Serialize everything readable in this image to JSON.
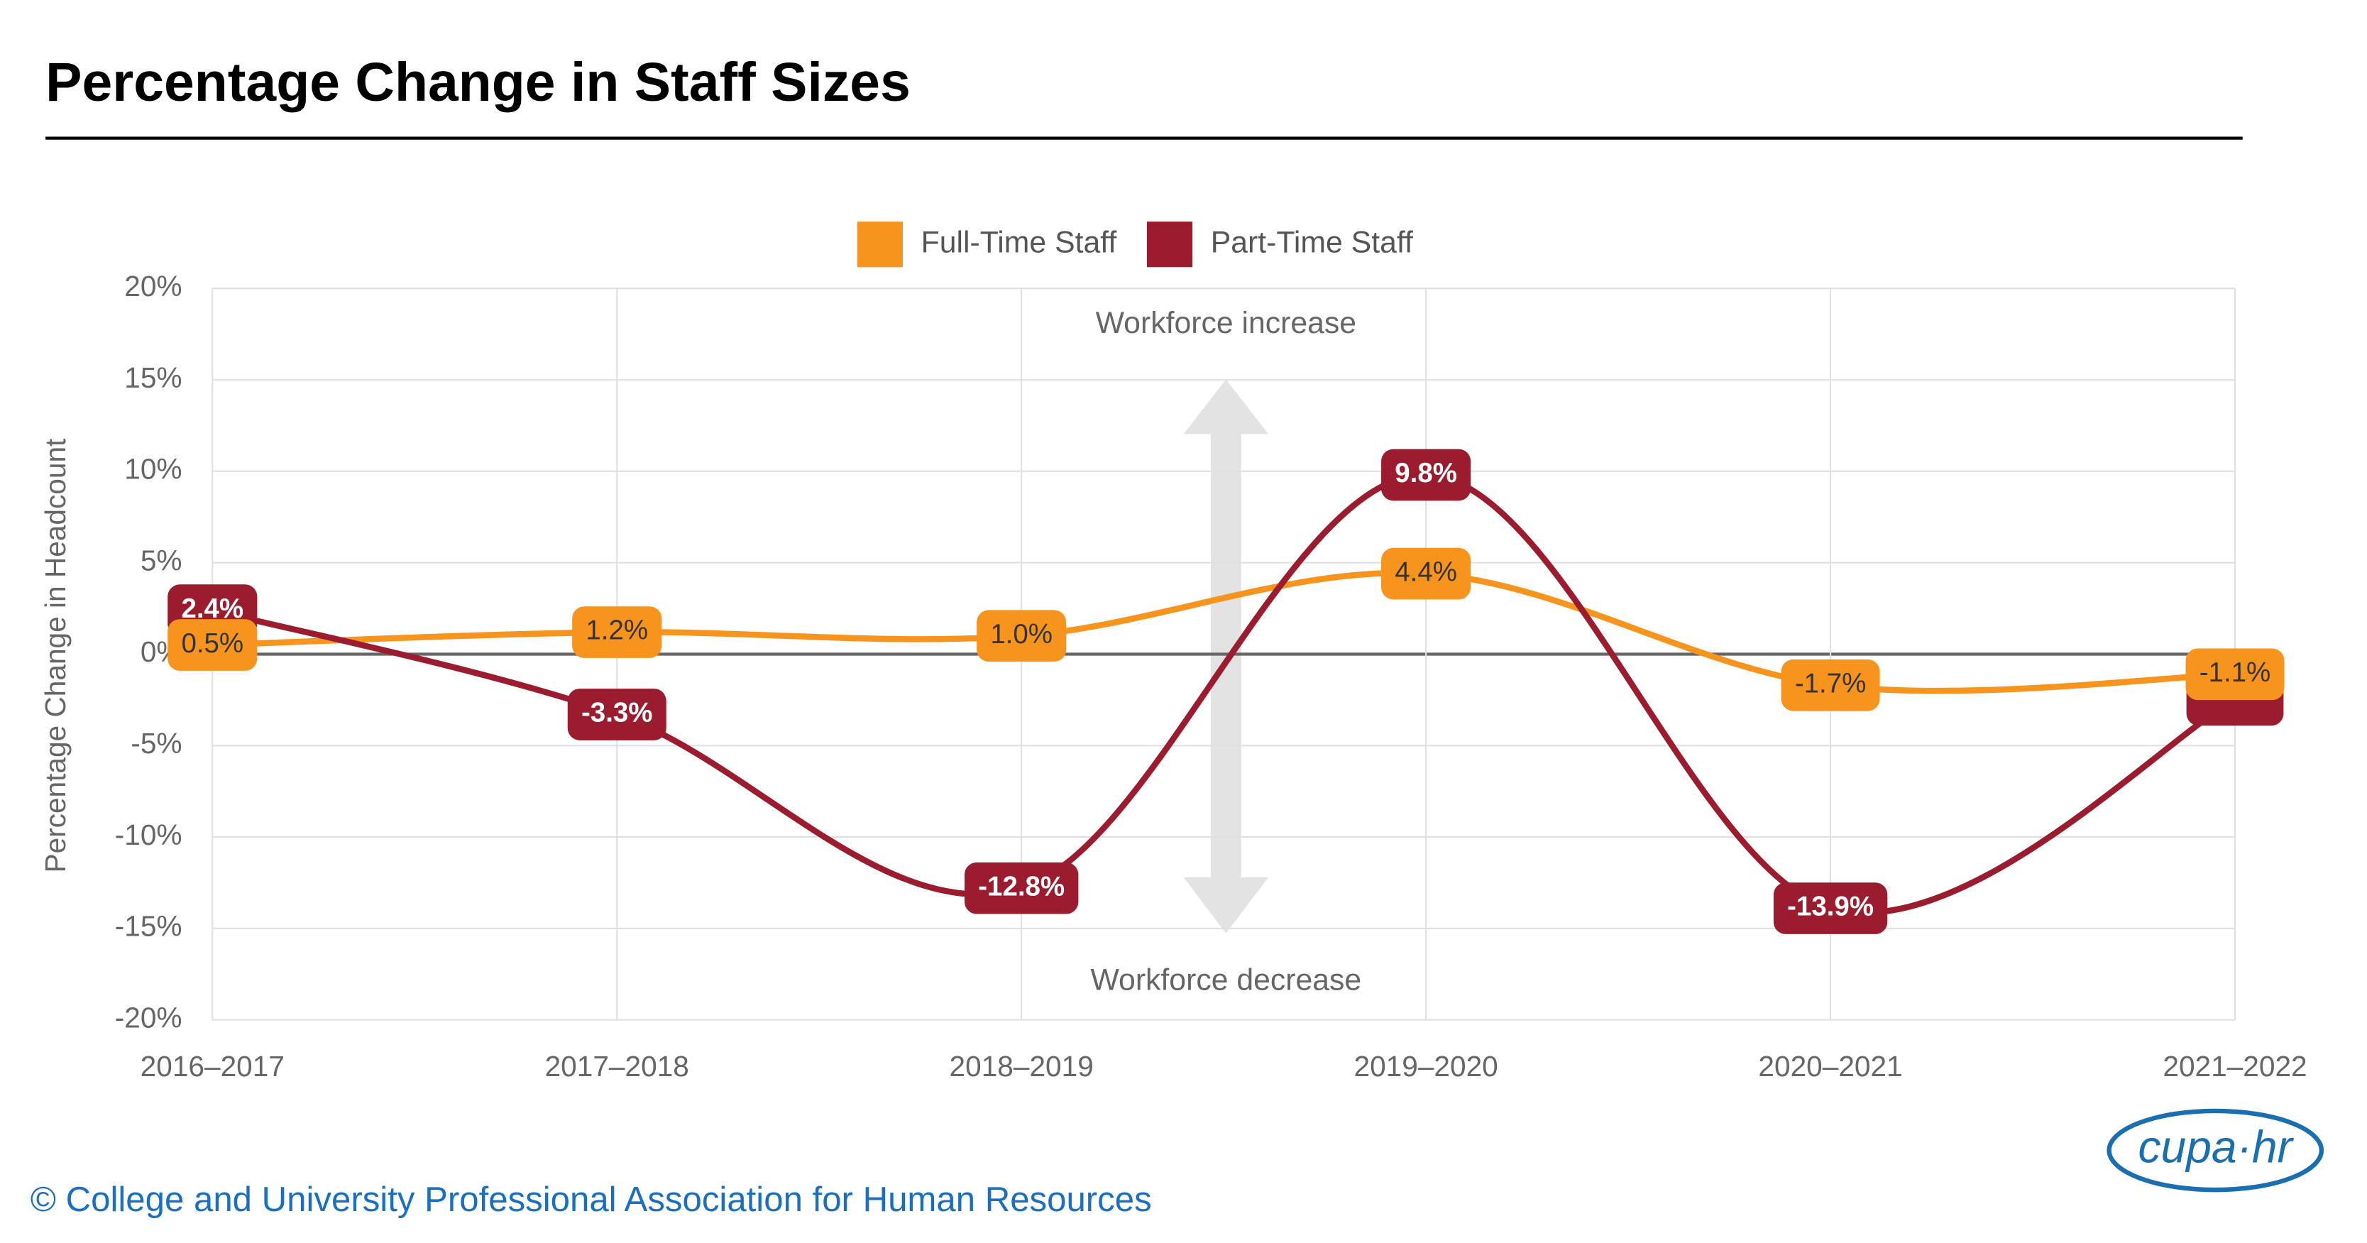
{
  "chart_data": {
    "type": "line",
    "title": "Percentage Change in Staff Sizes",
    "y_label": "Percentage Change in Headcount",
    "categories": [
      "2016–2017",
      "2017–2018",
      "2018–2019",
      "2019–2020",
      "2020–2021",
      "2021–2022"
    ],
    "series": [
      {
        "name": "Full-Time Staff",
        "color": "#f7941d",
        "values": [
          0.5,
          1.2,
          1.0,
          4.4,
          -1.7,
          -1.1
        ],
        "value_labels": [
          "0.5%",
          "1.2%",
          "1.0%",
          "4.4%",
          "-1.7%",
          "-1.1%"
        ]
      },
      {
        "name": "Part-Time Staff",
        "color": "#9b1c2e",
        "values": [
          2.4,
          -3.3,
          -12.8,
          9.8,
          -13.9,
          -2.5
        ],
        "value_labels": [
          "2.4%",
          "-3.3%",
          "-12.8%",
          "9.8%",
          "-13.9%",
          null
        ]
      }
    ],
    "ylim": [
      -20,
      20
    ],
    "yticks": [
      {
        "value": -20,
        "label": "-20%"
      },
      {
        "value": -15,
        "label": "-15%"
      },
      {
        "value": -10,
        "label": "-10%"
      },
      {
        "value": -5,
        "label": "-5%"
      },
      {
        "value": 0,
        "label": "0%"
      },
      {
        "value": 5,
        "label": "5%"
      },
      {
        "value": 10,
        "label": "10%"
      },
      {
        "value": 15,
        "label": "15%"
      },
      {
        "value": 20,
        "label": "20%"
      }
    ],
    "grid": true,
    "annotations": [
      "Workforce increase",
      "Workforce decrease"
    ],
    "source": "© College and University Professional Association for Human Resources",
    "logo": "cupa·hr"
  }
}
